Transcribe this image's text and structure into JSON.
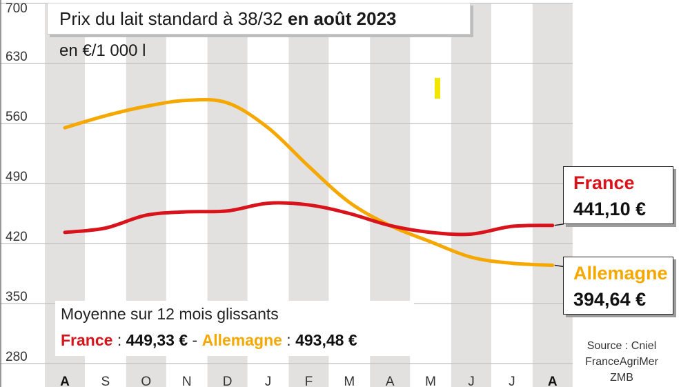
{
  "title": {
    "prefix": "Prix du lait standard à 38/32 ",
    "bold": "en août 2023"
  },
  "unit": "en €/1 000 l",
  "avg": {
    "title": "Moyenne sur 12 mois glissants",
    "france_label": "France",
    "sep1": " : ",
    "france_value": "449,33 €",
    "dash": " - ",
    "germany_label": "Allemagne",
    "sep2": " : ",
    "germany_value": "493,48 €"
  },
  "callouts": {
    "france": {
      "name": "France",
      "value": "441,10 €"
    },
    "germany": {
      "name": "Allemagne",
      "value": "394,64 €"
    }
  },
  "source": {
    "line1": "Source : Cniel",
    "line2": "FranceAgriMer",
    "line3": "ZMB"
  },
  "colors": {
    "france": "#d9131b",
    "germany": "#f5a800",
    "stripe": "#e3e1e0",
    "grid": "#bfbfbf",
    "marker": "#f2e600"
  },
  "chart_data": {
    "type": "line",
    "categories": [
      "A",
      "S",
      "O",
      "N",
      "D",
      "J",
      "F",
      "M",
      "A",
      "M",
      "J",
      "J",
      "A"
    ],
    "bold_categories": [
      0,
      12
    ],
    "yticks": [
      280,
      350,
      420,
      490,
      560,
      630,
      700
    ],
    "ylim": [
      280,
      700
    ],
    "series": [
      {
        "name": "France",
        "values": [
          433,
          438,
          453,
          457,
          458,
          467,
          465,
          455,
          441,
          433,
          431,
          440,
          441.1
        ]
      },
      {
        "name": "Allemagne",
        "values": [
          555,
          569,
          580,
          587,
          584,
          555,
          510,
          468,
          441,
          422,
          404,
          397,
          394.64
        ]
      }
    ]
  }
}
